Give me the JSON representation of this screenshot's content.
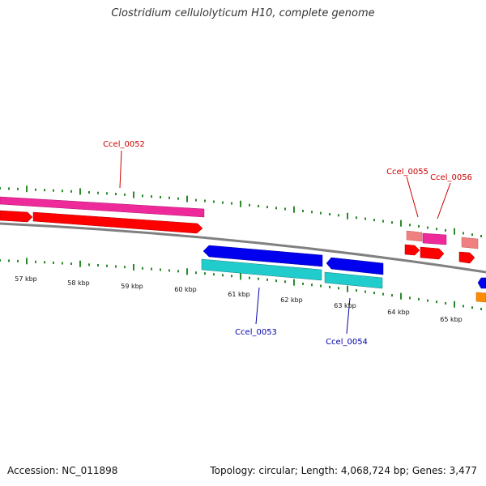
{
  "title": "Clostridium cellulolyticum H10, complete genome",
  "accession_label": "Accession: NC_011898",
  "summary_label": "Topology: circular; Length: 4,068,724 bp; Genes: 3,477",
  "kbp_ticks": [
    "57 kbp",
    "58 kbp",
    "59 kbp",
    "60 kbp",
    "61 kbp",
    "62 kbp",
    "63 kbp",
    "64 kbp",
    "65 kbp"
  ],
  "genes_forward": [
    {
      "name": "Ccel_0052"
    },
    {
      "name": "Ccel_0055"
    },
    {
      "name": "Ccel_0056"
    }
  ],
  "genes_reverse": [
    {
      "name": "Ccel_0053"
    },
    {
      "name": "Ccel_0054"
    }
  ],
  "colors": {
    "backbone": "#808080",
    "forward_label": "#cc0000",
    "reverse_label": "#0000aa",
    "cds_forward": "#ff0000",
    "cds_reverse": "#0000ee",
    "gene_forward": "#ee2a9a",
    "gene_reverse": "#20cccc",
    "gene_small": "#f08080",
    "tick": "#2a8a2a",
    "other": "#ff8c00"
  }
}
